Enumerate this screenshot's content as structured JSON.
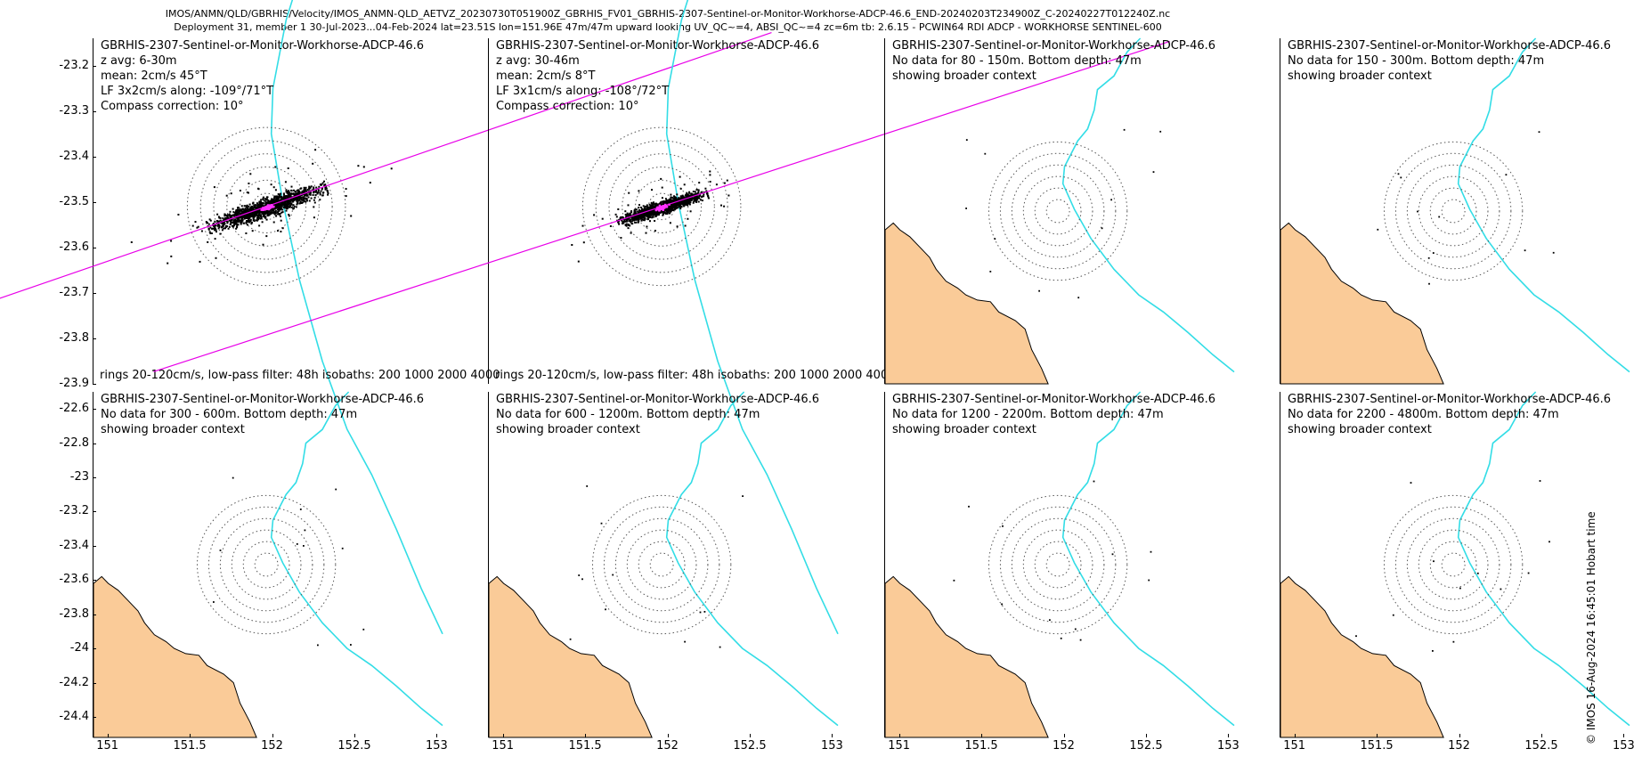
{
  "header": {
    "line1": "IMOS/ANMN/QLD/GBRHIS/Velocity/IMOS_ANMN-QLD_AETVZ_20230730T051900Z_GBRHIS_FV01_GBRHIS-2307-Sentinel-or-Monitor-Workhorse-ADCP-46.6_END-20240203T234900Z_C-20240227T012240Z.nc",
    "line2": "Deployment 31, member 1 30-Jul-2023...04-Feb-2024 lat=23.51S lon=151.96E 47m/47m upward looking UV_QC~=4, ABSI_QC~=4 zc=6m tb: 2.6.15 - PCWIN64 RDI ADCP - WORKHORSE SENTINEL-600"
  },
  "side_caption": "© IMOS 16-Aug-2024 16:45:01 Hobart time",
  "colors": {
    "land": "#FACB98",
    "isobath": "#33DDE6",
    "regression": "#E800E8",
    "lowpass": "#FF33FF",
    "scatter": "#000000"
  },
  "chart_data": [
    {
      "type": "scatter",
      "title": "GBRHIS-2307-Sentinel-or-Monitor-Workhorse-ADCP-46.6",
      "lines": [
        "z avg: 6-30m",
        "mean: 2cm/s 45°T",
        "LF 3x2cm/s along: -109°/71°T",
        "Compass correction: 10°"
      ],
      "footer": "rings 20-120cm/s, low-pass filter: 48h isobaths: 200 1000 2000 4000",
      "xlim": [
        150.91,
        153.03
      ],
      "ylim": [
        -23.9,
        -23.14
      ],
      "center": [
        151.96,
        -23.51
      ],
      "rings_deg": [
        0.08,
        0.16,
        0.24,
        0.32,
        0.4,
        0.48
      ],
      "ellipse": {
        "semi_major": 0.36,
        "semi_minor": 0.05,
        "heading_deg": 71
      },
      "lf_dot": {
        "semi_major": 0.045,
        "semi_minor": 0.014
      },
      "xticks": [],
      "yticks": [
        -23.2,
        -23.3,
        -23.4,
        -23.5,
        -23.6,
        -23.7,
        -23.8,
        -23.9
      ]
    },
    {
      "type": "scatter",
      "title": "GBRHIS-2307-Sentinel-or-Monitor-Workhorse-ADCP-46.6",
      "lines": [
        "z avg: 30-46m",
        "mean: 2cm/s 8°T",
        "LF 3x1cm/s along: -108°/72°T",
        "Compass correction: 10°"
      ],
      "footer": "rings 20-120cm/s, low-pass filter: 48h isobaths: 200 1000 2000 4000",
      "xlim": [
        150.91,
        153.03
      ],
      "ylim": [
        -23.9,
        -23.14
      ],
      "center": [
        151.96,
        -23.51
      ],
      "rings_deg": [
        0.08,
        0.16,
        0.24,
        0.32,
        0.4,
        0.48
      ],
      "ellipse": {
        "semi_major": 0.27,
        "semi_minor": 0.035,
        "heading_deg": 72
      },
      "lf_dot": {
        "semi_major": 0.04,
        "semi_minor": 0.012
      },
      "xticks": [],
      "yticks": []
    },
    {
      "type": "map",
      "title": "GBRHIS-2307-Sentinel-or-Monitor-Workhorse-ADCP-46.6",
      "lines": [
        "No data for 80 - 150m. Bottom depth: 47m",
        "showing broader context"
      ],
      "xlim": [
        150.91,
        153.03
      ],
      "ylim": [
        -24.52,
        -22.5
      ],
      "center": [
        151.96,
        -23.51
      ],
      "rings_deg": [
        0.07,
        0.14,
        0.21,
        0.28,
        0.35,
        0.42
      ],
      "xticks": [],
      "yticks": []
    },
    {
      "type": "map",
      "title": "GBRHIS-2307-Sentinel-or-Monitor-Workhorse-ADCP-46.6",
      "lines": [
        "No data for 150 - 300m. Bottom depth: 47m",
        "showing broader context"
      ],
      "xlim": [
        150.91,
        153.03
      ],
      "ylim": [
        -24.52,
        -22.5
      ],
      "center": [
        151.96,
        -23.51
      ],
      "rings_deg": [
        0.07,
        0.14,
        0.21,
        0.28,
        0.35,
        0.42
      ],
      "xticks": [],
      "yticks": []
    },
    {
      "type": "map",
      "title": "GBRHIS-2307-Sentinel-or-Monitor-Workhorse-ADCP-46.6",
      "lines": [
        "No data for 300 - 600m. Bottom depth: 47m",
        "showing broader context"
      ],
      "xlim": [
        150.91,
        153.03
      ],
      "ylim": [
        -24.52,
        -22.5
      ],
      "center": [
        151.96,
        -23.51
      ],
      "rings_deg": [
        0.07,
        0.14,
        0.21,
        0.28,
        0.35,
        0.42
      ],
      "xticks": [
        151,
        151.5,
        152,
        152.5,
        153
      ],
      "yticks": [
        -22.6,
        -22.8,
        -23,
        -23.2,
        -23.4,
        -23.6,
        -23.8,
        -24,
        -24.2,
        -24.4
      ]
    },
    {
      "type": "map",
      "title": "GBRHIS-2307-Sentinel-or-Monitor-Workhorse-ADCP-46.6",
      "lines": [
        "No data for 600 - 1200m. Bottom depth: 47m",
        "showing broader context"
      ],
      "xlim": [
        150.91,
        153.03
      ],
      "ylim": [
        -24.52,
        -22.5
      ],
      "center": [
        151.96,
        -23.51
      ],
      "rings_deg": [
        0.07,
        0.14,
        0.21,
        0.28,
        0.35,
        0.42
      ],
      "xticks": [
        151,
        151.5,
        152,
        152.5,
        153
      ],
      "yticks": []
    },
    {
      "type": "map",
      "title": "GBRHIS-2307-Sentinel-or-Monitor-Workhorse-ADCP-46.6",
      "lines": [
        "No data for 1200 - 2200m. Bottom depth: 47m",
        "showing broader context"
      ],
      "xlim": [
        150.91,
        153.03
      ],
      "ylim": [
        -24.52,
        -22.5
      ],
      "center": [
        151.96,
        -23.51
      ],
      "rings_deg": [
        0.07,
        0.14,
        0.21,
        0.28,
        0.35,
        0.42
      ],
      "xticks": [
        151,
        151.5,
        152,
        152.5,
        153
      ],
      "yticks": []
    },
    {
      "type": "map",
      "title": "GBRHIS-2307-Sentinel-or-Monitor-Workhorse-ADCP-46.6",
      "lines": [
        "No data for 2200 - 4800m. Bottom depth: 47m",
        "showing broader context"
      ],
      "xlim": [
        150.91,
        153.03
      ],
      "ylim": [
        -24.52,
        -22.5
      ],
      "center": [
        151.96,
        -23.51
      ],
      "rings_deg": [
        0.07,
        0.14,
        0.21,
        0.28,
        0.35,
        0.42
      ],
      "xticks": [
        151,
        151.5,
        152,
        152.5,
        153
      ],
      "yticks": []
    }
  ],
  "coastline": [
    [
      150.91,
      -23.62
    ],
    [
      150.96,
      -23.58
    ],
    [
      151.0,
      -23.62
    ],
    [
      151.06,
      -23.66
    ],
    [
      151.12,
      -23.72
    ],
    [
      151.18,
      -23.78
    ],
    [
      151.22,
      -23.85
    ],
    [
      151.28,
      -23.92
    ],
    [
      151.35,
      -23.96
    ],
    [
      151.4,
      -24.0
    ],
    [
      151.47,
      -24.03
    ],
    [
      151.55,
      -24.04
    ],
    [
      151.6,
      -24.1
    ],
    [
      151.7,
      -24.15
    ],
    [
      151.76,
      -24.2
    ],
    [
      151.8,
      -24.32
    ],
    [
      151.86,
      -24.43
    ],
    [
      151.9,
      -24.52
    ]
  ],
  "isobath_line": [
    [
      152.46,
      -22.5
    ],
    [
      152.38,
      -22.58
    ],
    [
      152.3,
      -22.72
    ],
    [
      152.2,
      -22.8
    ],
    [
      152.18,
      -22.92
    ],
    [
      152.14,
      -23.03
    ],
    [
      152.08,
      -23.1
    ],
    [
      152.0,
      -23.25
    ],
    [
      151.99,
      -23.35
    ],
    [
      152.06,
      -23.5
    ],
    [
      152.16,
      -23.67
    ],
    [
      152.3,
      -23.85
    ],
    [
      152.45,
      -24.0
    ],
    [
      152.6,
      -24.1
    ],
    [
      152.75,
      -24.22
    ],
    [
      152.9,
      -24.35
    ],
    [
      153.03,
      -24.45
    ]
  ]
}
